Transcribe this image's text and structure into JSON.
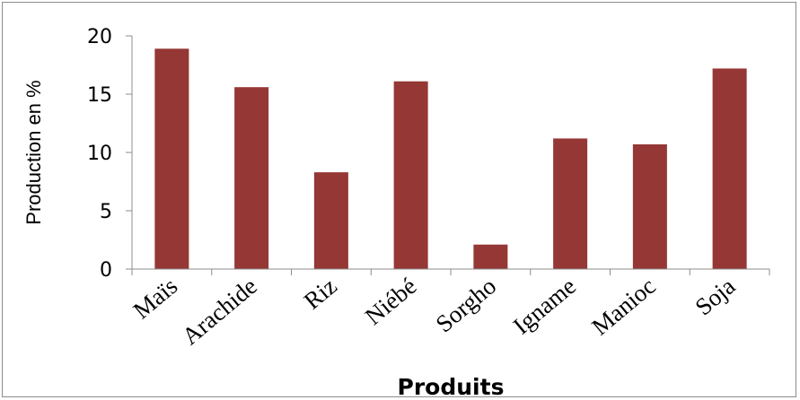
{
  "chart_data": {
    "type": "bar",
    "title": "",
    "xlabel": "Produits",
    "ylabel": "Production en %",
    "ylim": [
      0,
      20
    ],
    "yticks": [
      "0",
      "5",
      "10",
      "15",
      "20"
    ],
    "categories": [
      "Maïs",
      "Arachide",
      "Riz",
      "Niébé",
      "Sorgho",
      "Igname",
      "Manioc",
      "Soja"
    ],
    "values": [
      18.9,
      15.6,
      8.3,
      16.1,
      2.1,
      11.2,
      10.7,
      17.2
    ],
    "bar_color": "#953735",
    "grid": false,
    "legend": "none"
  }
}
